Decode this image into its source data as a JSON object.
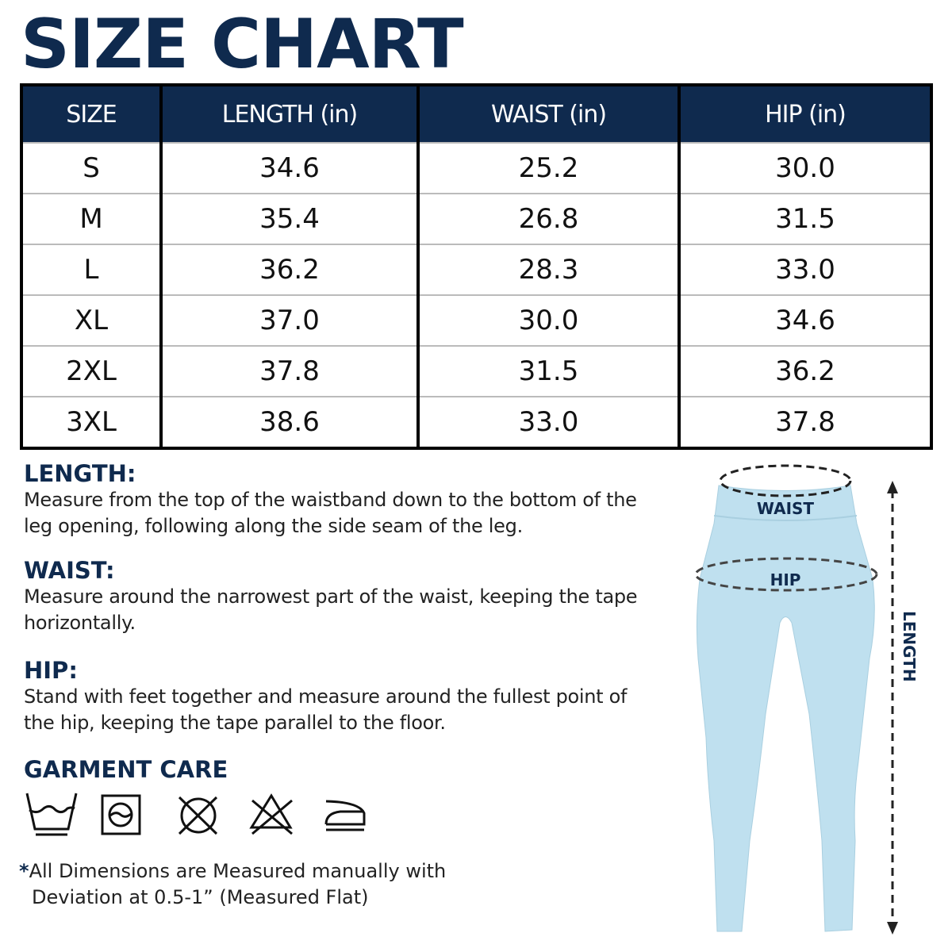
{
  "title": "SIZE CHART",
  "table": {
    "headers": [
      "SIZE",
      "LENGTH (in)",
      "WAIST (in)",
      "HIP (in)"
    ],
    "rows": [
      [
        "S",
        "34.6",
        "25.2",
        "30.0"
      ],
      [
        "M",
        "35.4",
        "26.8",
        "31.5"
      ],
      [
        "L",
        "36.2",
        "28.3",
        "33.0"
      ],
      [
        "XL",
        "37.0",
        "30.0",
        "34.6"
      ],
      [
        "2XL",
        "37.8",
        "31.5",
        "36.2"
      ],
      [
        "3XL",
        "38.6",
        "33.0",
        "37.8"
      ]
    ]
  },
  "sections": [
    {
      "heading": "LENGTH:",
      "text": "Measure from the top of the waistband down to the bottom of the leg opening, following along the side seam of the leg."
    },
    {
      "heading": "WAIST:",
      "text": "Measure around the narrowest part of the waist, keeping the tape horizontally."
    },
    {
      "heading": "HIP:",
      "text": "Stand with feet together and measure around the fullest point of the hip, keeping the tape parallel to the floor."
    }
  ],
  "care": {
    "heading": "GARMENT CARE",
    "icons": [
      "hand-wash-icon",
      "tumble-dry-icon",
      "do-not-dry-clean-icon",
      "do-not-bleach-icon",
      "iron-icon"
    ]
  },
  "note": {
    "star": "*",
    "line1": "All Dimensions are Measured manually with",
    "line2": "Deviation at 0.5-1” (Measured Flat)"
  },
  "figure": {
    "waist_label": "WAIST",
    "hip_label": "HIP",
    "length_label": "LENGTH",
    "garment_color": "#bfe0ef"
  },
  "colors": {
    "navy": "#0f2a4e"
  }
}
